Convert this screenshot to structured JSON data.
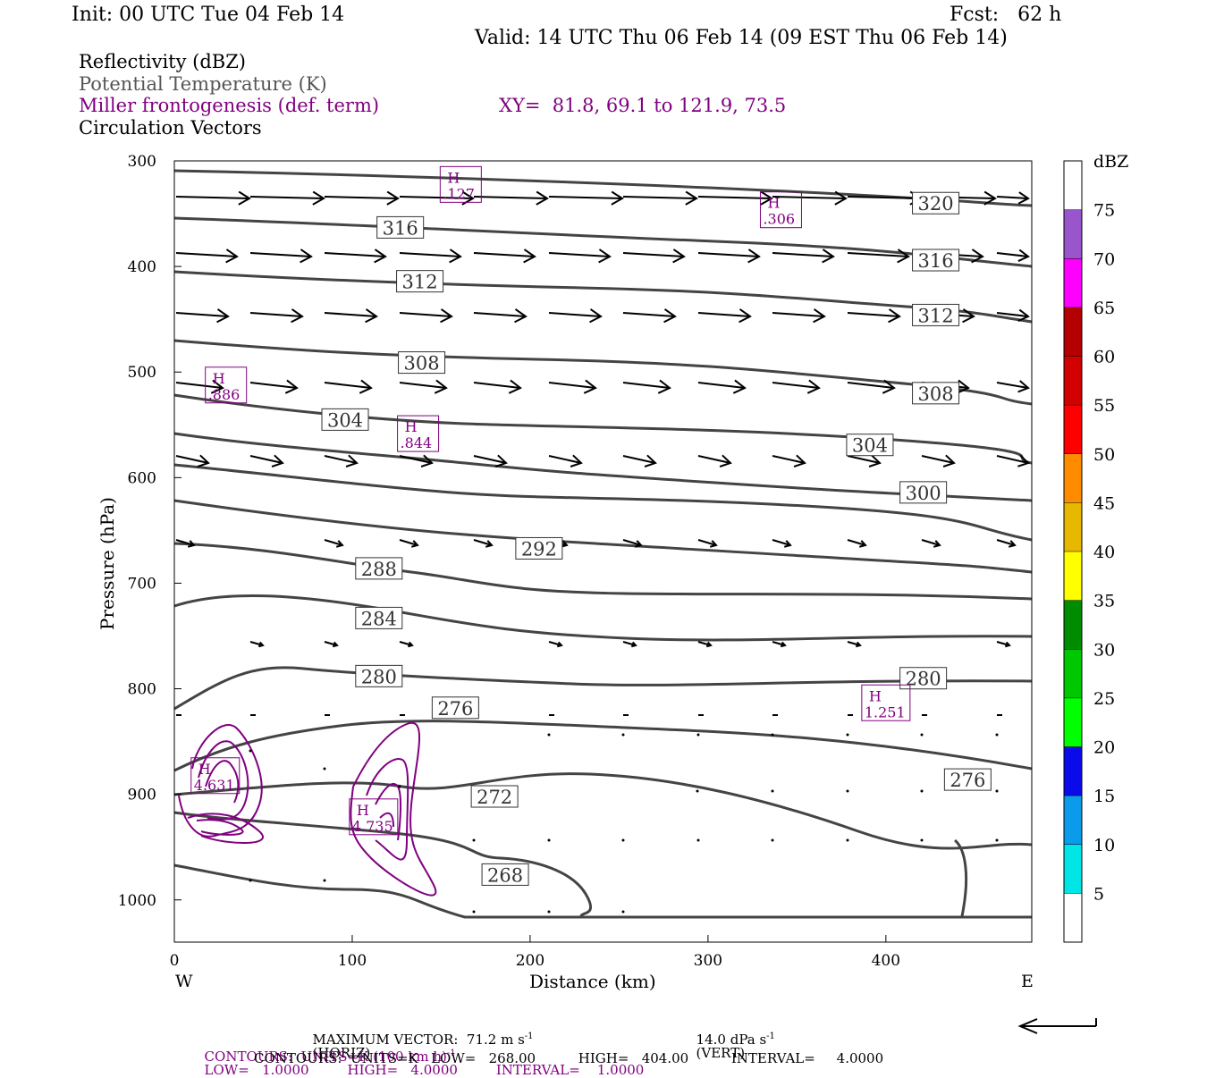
{
  "header": {
    "init": "Init: 00 UTC Tue 04 Feb 14",
    "fcst": "Fcst:   62 h",
    "valid": "Valid: 14 UTC Thu 06 Feb 14 (09 EST Thu 06 Feb 14)"
  },
  "fields": {
    "reflectivity": "Reflectivity (dBZ)",
    "theta": "Potential Temperature (K)",
    "miller": "Miller frontogenesis (def. term)",
    "xy": "XY=  81.8, 69.1 to 121.9, 73.5",
    "vectors": "Circulation Vectors"
  },
  "footer": {
    "max_vector": "MAXIMUM VECTOR:  71.2 m s",
    "max_vector_horiz": "(HORIZ)",
    "max_vector_vert": "14.0 dPa s",
    "max_vector_vert_tag": "(VERT)",
    "exp": "-1",
    "contours1_a": "CONTOURS:  UNITS=K (100 km h)",
    "contours1_b": "LOW=   1.0000         HIGH=   4.0000         INTERVAL=    1.0000",
    "contours2": "CONTOURS:  UNITS=K   LOW=   268.00          HIGH=   404.00          INTERVAL=     4.0000"
  },
  "colors": {
    "theta": "#444444",
    "miller": "#800080",
    "vectors": "#000000"
  },
  "chart_data": {
    "type": "cross-section",
    "xlabel": "Distance (km)",
    "ylabel": "Pressure (hPa)",
    "x_ticks": [
      "0",
      "100",
      "200",
      "300",
      "400"
    ],
    "x_tick_values": [
      0,
      100,
      200,
      300,
      400
    ],
    "y_ticks": [
      "300",
      "400",
      "500",
      "600",
      "700",
      "800",
      "900",
      "1000"
    ],
    "y_tick_values": [
      300,
      400,
      500,
      600,
      700,
      800,
      900,
      1000
    ],
    "xlim": [
      0,
      482
    ],
    "ylim": [
      1040,
      300
    ],
    "side_labels": {
      "west": "W",
      "east": "E"
    },
    "theta_labels": [
      {
        "text": "320",
        "x": 428,
        "p": 340
      },
      {
        "text": "316",
        "x": 127,
        "p": 363
      },
      {
        "text": "316",
        "x": 428,
        "p": 394
      },
      {
        "text": "312",
        "x": 138,
        "p": 414
      },
      {
        "text": "312",
        "x": 428,
        "p": 446
      },
      {
        "text": "308",
        "x": 139,
        "p": 491
      },
      {
        "text": "308",
        "x": 428,
        "p": 520
      },
      {
        "text": "304",
        "x": 96,
        "p": 545
      },
      {
        "text": "304",
        "x": 391,
        "p": 569
      },
      {
        "text": "300",
        "x": 421,
        "p": 614
      },
      {
        "text": "292",
        "x": 205,
        "p": 667
      },
      {
        "text": "288",
        "x": 115,
        "p": 686
      },
      {
        "text": "284",
        "x": 115,
        "p": 733
      },
      {
        "text": "280",
        "x": 115,
        "p": 788
      },
      {
        "text": "280",
        "x": 421,
        "p": 790
      },
      {
        "text": "276",
        "x": 158,
        "p": 818
      },
      {
        "text": "276",
        "x": 446,
        "p": 886
      },
      {
        "text": "272",
        "x": 180,
        "p": 902
      },
      {
        "text": "268",
        "x": 186,
        "p": 976
      }
    ],
    "frontogenesis_maxima": [
      {
        "label": "H",
        "value": ".127",
        "x": 161,
        "p": 324
      },
      {
        "label": "H",
        "value": ".306",
        "x": 341,
        "p": 348
      },
      {
        "label": "H",
        "value": ".886",
        "x": 29,
        "p": 514
      },
      {
        "label": "H",
        "value": ".844",
        "x": 137,
        "p": 560
      },
      {
        "label": "H",
        "value": "1.251",
        "x": 400,
        "p": 815
      },
      {
        "label": "H",
        "value": "4.631",
        "x": 23,
        "p": 884
      },
      {
        "label": "H",
        "value": "4.735",
        "x": 112,
        "p": 923
      }
    ],
    "colorbar": {
      "title": "dBZ",
      "levels": [
        "5",
        "10",
        "15",
        "20",
        "25",
        "30",
        "35",
        "40",
        "45",
        "50",
        "55",
        "60",
        "65",
        "70",
        "75"
      ],
      "colors": [
        "#ffffff",
        "#00e5e5",
        "#0a9bea",
        "#0a0aea",
        "#00ff00",
        "#00c800",
        "#008c00",
        "#ffff00",
        "#e6b800",
        "#ff8c00",
        "#ff0000",
        "#d20000",
        "#b40000",
        "#ff00ff",
        "#9955cc",
        "#ffffff"
      ]
    }
  }
}
